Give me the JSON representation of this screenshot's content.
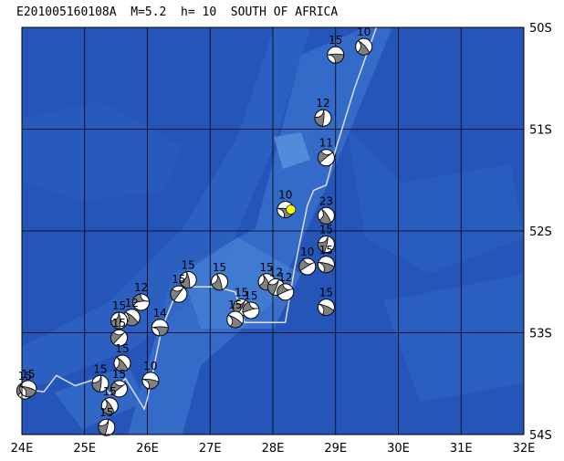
{
  "title": "E201005160108A  M=5.2  h= 10  SOUTH OF AFRICA",
  "axes": {
    "lon_labels": [
      "24E",
      "25E",
      "26E",
      "27E",
      "28E",
      "29E",
      "30E",
      "31E",
      "32E"
    ],
    "lat_labels": [
      "50S",
      "51S",
      "52S",
      "53S",
      "54S"
    ]
  },
  "colors": {
    "ocean_deep": "#1f4fb0",
    "ocean_mid": "#2b62c4",
    "ocean_shallow": "#4d86d8",
    "grid": "#000000",
    "ridge": "#d8d8e8",
    "event_star": "#ffff00"
  },
  "ridge_path": [
    [
      29.65,
      50.0
    ],
    [
      29.3,
      50.6
    ],
    [
      29.0,
      51.2
    ],
    [
      28.85,
      51.55
    ],
    [
      28.65,
      51.6
    ],
    [
      28.55,
      51.75
    ],
    [
      28.35,
      52.35
    ],
    [
      28.2,
      52.9
    ],
    [
      27.55,
      52.9
    ],
    [
      27.4,
      52.6
    ],
    [
      27.1,
      52.55
    ],
    [
      26.5,
      52.55
    ],
    [
      26.3,
      52.85
    ],
    [
      26.2,
      53.05
    ],
    [
      26.0,
      53.65
    ],
    [
      25.95,
      53.75
    ],
    [
      25.65,
      53.45
    ],
    [
      25.4,
      53.6
    ],
    [
      25.2,
      53.45
    ],
    [
      24.85,
      53.52
    ],
    [
      24.55,
      53.42
    ],
    [
      24.35,
      53.58
    ],
    [
      24.0,
      53.55
    ]
  ],
  "events": [
    {
      "lon": 29.0,
      "lat": 50.27,
      "depth": "15"
    },
    {
      "lon": 29.45,
      "lat": 50.19,
      "depth": "10"
    },
    {
      "lon": 28.8,
      "lat": 50.89,
      "depth": "12"
    },
    {
      "lon": 28.85,
      "lat": 51.28,
      "depth": "11"
    },
    {
      "lon": 28.2,
      "lat": 51.79,
      "depth": "10",
      "main": true
    },
    {
      "lon": 28.85,
      "lat": 51.85,
      "depth": "23"
    },
    {
      "lon": 28.85,
      "lat": 52.13,
      "depth": "15"
    },
    {
      "lon": 28.55,
      "lat": 52.35,
      "depth": "10"
    },
    {
      "lon": 28.85,
      "lat": 52.33,
      "depth": "15"
    },
    {
      "lon": 27.9,
      "lat": 52.5,
      "depth": "15"
    },
    {
      "lon": 28.05,
      "lat": 52.55,
      "depth": "12"
    },
    {
      "lon": 28.2,
      "lat": 52.6,
      "depth": "12"
    },
    {
      "lon": 28.85,
      "lat": 52.75,
      "depth": "15"
    },
    {
      "lon": 27.15,
      "lat": 52.5,
      "depth": "15"
    },
    {
      "lon": 27.5,
      "lat": 52.75,
      "depth": "15"
    },
    {
      "lon": 27.65,
      "lat": 52.78,
      "depth": "15"
    },
    {
      "lon": 27.4,
      "lat": 52.87,
      "depth": "15"
    },
    {
      "lon": 26.65,
      "lat": 52.48,
      "depth": "15"
    },
    {
      "lon": 26.5,
      "lat": 52.62,
      "depth": "15"
    },
    {
      "lon": 25.9,
      "lat": 52.7,
      "depth": "12"
    },
    {
      "lon": 25.75,
      "lat": 52.85,
      "depth": "12"
    },
    {
      "lon": 25.55,
      "lat": 52.88,
      "depth": "15"
    },
    {
      "lon": 25.55,
      "lat": 53.05,
      "depth": "15"
    },
    {
      "lon": 26.2,
      "lat": 52.95,
      "depth": "14"
    },
    {
      "lon": 25.6,
      "lat": 53.3,
      "depth": "15"
    },
    {
      "lon": 25.25,
      "lat": 53.5,
      "depth": "15"
    },
    {
      "lon": 25.55,
      "lat": 53.55,
      "depth": "15"
    },
    {
      "lon": 26.05,
      "lat": 53.47,
      "depth": "10"
    },
    {
      "lon": 25.4,
      "lat": 53.72,
      "depth": "15"
    },
    {
      "lon": 25.35,
      "lat": 53.93,
      "depth": "15"
    },
    {
      "lon": 24.05,
      "lat": 53.57,
      "depth": "15"
    },
    {
      "lon": 24.1,
      "lat": 53.55,
      "depth": "15"
    }
  ]
}
